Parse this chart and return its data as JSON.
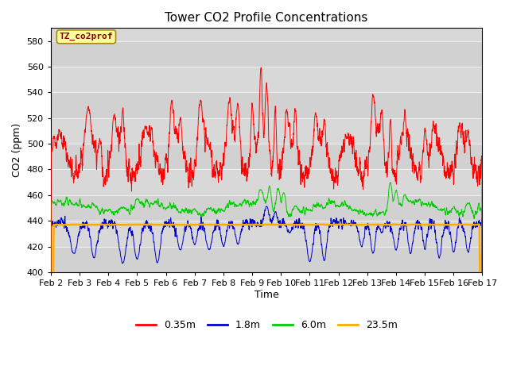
{
  "title": "Tower CO2 Profile Concentrations",
  "xlabel": "Time",
  "ylabel": "CO2 (ppm)",
  "ylim": [
    400,
    590
  ],
  "yticks": [
    400,
    420,
    440,
    460,
    480,
    500,
    520,
    540,
    560,
    580
  ],
  "date_labels": [
    "Feb 2",
    "Feb 3",
    "Feb 4",
    "Feb 5",
    "Feb 6",
    "Feb 7",
    "Feb 8",
    "Feb 9",
    "Feb 10",
    "Feb 11",
    "Feb 12",
    "Feb 13",
    "Feb 14",
    "Feb 15",
    "Feb 16",
    "Feb 17"
  ],
  "colors": {
    "red": "#ff0000",
    "blue": "#0000cc",
    "green": "#00cc00",
    "orange": "#ffaa00"
  },
  "legend_labels": [
    "0.35m",
    "1.8m",
    "6.0m",
    "23.5m"
  ],
  "label_box_color": "#ffff99",
  "label_box_text": "TZ_co2prof",
  "label_text_color": "#880000",
  "background_color": "#ffffff",
  "plot_bg_color": "#d8d8d8",
  "grid_color": "#eeeeee",
  "n_points": 3600,
  "seed": 42
}
